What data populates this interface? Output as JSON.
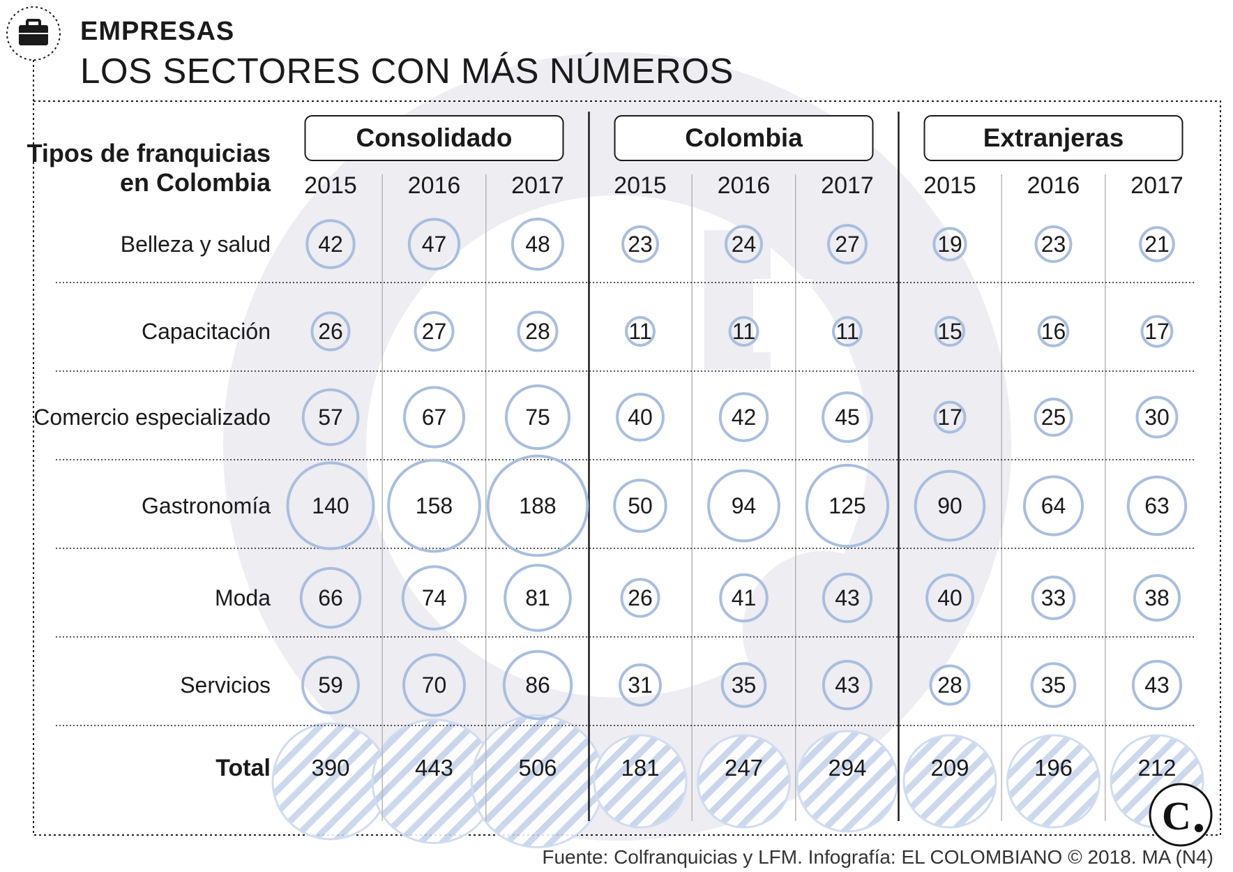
{
  "header": {
    "section": "EMPRESAS",
    "title": "LOS SECTORES CON MÁS NÚMEROS"
  },
  "footer": {
    "source": "Fuente: Colfranquicias y LFM. Infografía: EL COLOMBIANO © 2018. MA (N4)"
  },
  "icons": {
    "section_icon": "briefcase-icon",
    "watermark": "el-colombiano-logo-watermark",
    "logo": "el-colombiano-logo"
  },
  "colors": {
    "bubble_stroke": "#a9bede",
    "watermark": "#ededf2",
    "total_hatch": "#c3d2ea",
    "text": "#1a1a1a"
  },
  "chart_data": {
    "type": "table",
    "row_header": [
      "Tipos de franquicias",
      "en Colombia"
    ],
    "groups": [
      {
        "name": "Consolidado",
        "years": [
          "2015",
          "2016",
          "2017"
        ]
      },
      {
        "name": "Colombia",
        "years": [
          "2015",
          "2016",
          "2017"
        ]
      },
      {
        "name": "Extranjeras",
        "years": [
          "2015",
          "2016",
          "2017"
        ]
      }
    ],
    "categories": [
      "Belleza y salud",
      "Capacitación",
      "Comercio especializado",
      "Gastronomía",
      "Moda",
      "Servicios"
    ],
    "rows": [
      [
        42,
        47,
        48,
        23,
        24,
        27,
        19,
        23,
        21
      ],
      [
        26,
        27,
        28,
        11,
        11,
        11,
        15,
        16,
        17
      ],
      [
        57,
        67,
        75,
        40,
        42,
        45,
        17,
        25,
        30
      ],
      [
        140,
        158,
        188,
        50,
        94,
        125,
        90,
        64,
        63
      ],
      [
        66,
        74,
        81,
        26,
        41,
        43,
        40,
        33,
        38
      ],
      [
        59,
        70,
        86,
        31,
        35,
        43,
        28,
        35,
        43
      ]
    ],
    "total_label": "Total",
    "totals": [
      390,
      443,
      506,
      181,
      247,
      294,
      209,
      196,
      212
    ]
  }
}
